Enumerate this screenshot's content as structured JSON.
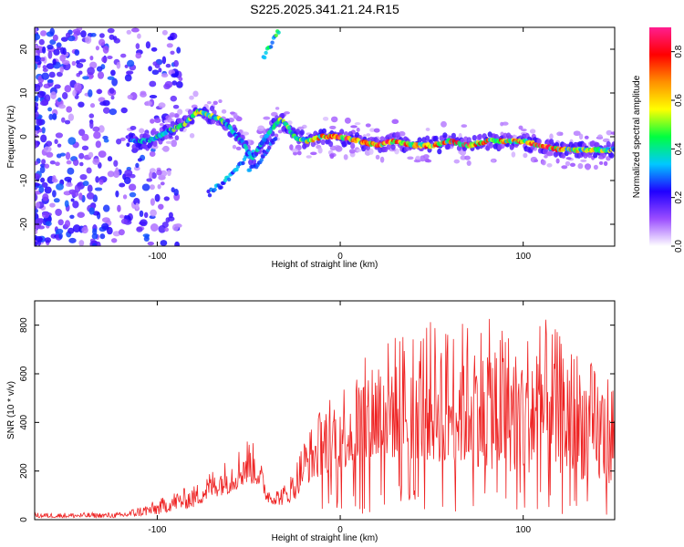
{
  "chart_data": [
    {
      "type": "heatmap",
      "title": "S225.2025.341.21.24.R15",
      "xlabel": "Height of straight line (km)",
      "ylabel": "Frequency (Hz)",
      "xlim": [
        -167,
        150
      ],
      "ylim": [
        -25,
        25
      ],
      "xticks": [
        -100,
        0,
        100
      ],
      "yticks": [
        -20,
        -10,
        0,
        10,
        20
      ],
      "colorbar": {
        "label": "Normalized spectral amplitude",
        "ticks": [
          0.0,
          0.2,
          0.4,
          0.6,
          0.8
        ],
        "range": [
          0,
          0.9
        ],
        "stops": [
          "#ffffff",
          "#9b4dff",
          "#2000ff",
          "#00c8ff",
          "#00ff40",
          "#ffff00",
          "#ff9000",
          "#ff0000",
          "#ff1e90"
        ]
      },
      "ridge": {
        "x": [
          -115,
          -105,
          -95,
          -85,
          -78,
          -72,
          -65,
          -58,
          -52,
          -48,
          -42,
          -37,
          -33,
          -30,
          -25,
          -18,
          -10,
          0,
          10,
          20,
          30,
          40,
          50,
          60,
          70,
          80,
          90,
          100,
          110,
          120,
          130,
          140,
          150
        ],
        "freq": [
          -1,
          -1,
          1,
          3,
          6,
          5,
          4,
          1,
          -2,
          -5,
          -1,
          2,
          4,
          3,
          0,
          -1,
          0,
          0,
          -1,
          -2,
          -1,
          -2,
          -2,
          -1,
          -2,
          -1,
          -1,
          -1,
          -2,
          -3,
          -3,
          -3,
          -3
        ],
        "amp": [
          0.35,
          0.4,
          0.45,
          0.5,
          0.55,
          0.55,
          0.5,
          0.4,
          0.35,
          0.35,
          0.4,
          0.45,
          0.5,
          0.5,
          0.55,
          0.6,
          0.7,
          0.8,
          0.75,
          0.85,
          0.8,
          0.7,
          0.75,
          0.7,
          0.8,
          0.7,
          0.7,
          0.75,
          0.8,
          0.7,
          0.6,
          0.55,
          0.5
        ]
      },
      "branches": [
        {
          "x": [
            -42,
            -38,
            -35,
            -33
          ],
          "freq": [
            18,
            21,
            23,
            25
          ],
          "amp": 0.45
        },
        {
          "x": [
            -72,
            -65,
            -58,
            -52,
            -47
          ],
          "freq": [
            -13,
            -11,
            -8,
            -5,
            -3
          ],
          "amp": 0.35
        },
        {
          "x": [
            -50,
            -45,
            -40,
            -35
          ],
          "freq": [
            -8,
            -6,
            -3,
            0
          ],
          "amp": 0.3
        }
      ]
    },
    {
      "type": "line",
      "xlabel": "Height of straight line (km)",
      "ylabel": "SNR (10 * v/v)",
      "xlim": [
        -167,
        150
      ],
      "ylim": [
        0,
        900
      ],
      "xticks": [
        -100,
        0,
        100
      ],
      "yticks": [
        0,
        200,
        400,
        600,
        800
      ],
      "color": "#ee2222",
      "envelope": {
        "x": [
          -167,
          -120,
          -100,
          -90,
          -80,
          -70,
          -60,
          -50,
          -45,
          -40,
          -35,
          -30,
          -25,
          -20,
          -15,
          -10,
          -5,
          0,
          10,
          20,
          30,
          40,
          50,
          60,
          70,
          80,
          90,
          100,
          110,
          120,
          130,
          140,
          150
        ],
        "base": [
          8,
          8,
          20,
          40,
          50,
          90,
          110,
          150,
          140,
          70,
          60,
          60,
          80,
          140,
          160,
          180,
          200,
          210,
          220,
          240,
          250,
          250,
          240,
          230,
          230,
          210,
          200,
          190,
          200,
          190,
          170,
          150,
          150
        ],
        "amp": [
          20,
          22,
          60,
          80,
          90,
          120,
          150,
          200,
          140,
          80,
          70,
          90,
          140,
          200,
          240,
          290,
          330,
          360,
          420,
          480,
          520,
          560,
          580,
          580,
          600,
          620,
          600,
          580,
          640,
          580,
          540,
          480,
          450
        ]
      }
    }
  ]
}
